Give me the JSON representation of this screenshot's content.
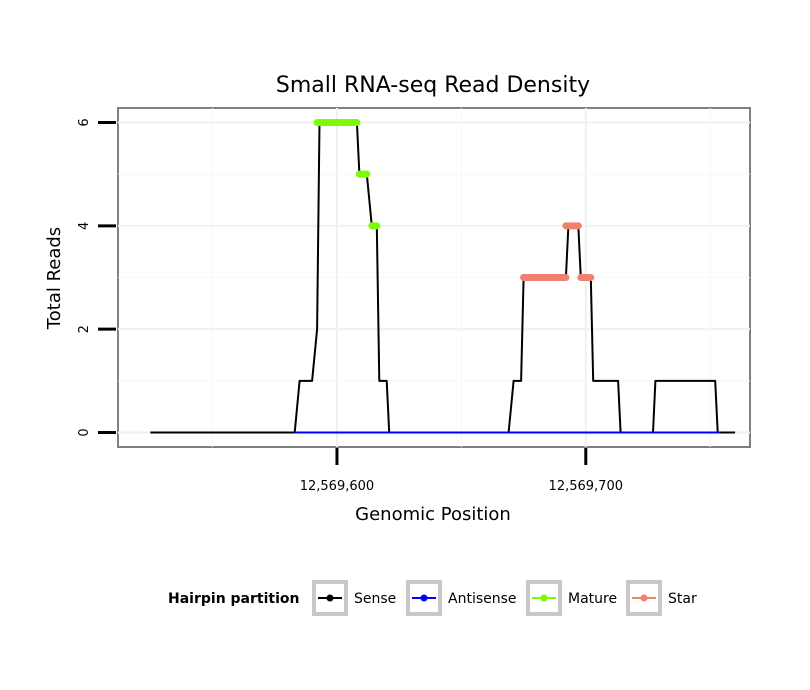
{
  "chart_data": {
    "type": "line",
    "title": "Small RNA-seq Read Density",
    "xlabel": "Genomic Position",
    "ylabel": "Total Reads",
    "xlim": [
      12569512,
      12569766
    ],
    "ylim": [
      -0.28,
      6.28
    ],
    "x_ticks": [
      {
        "value": 12569600,
        "label": "12,569,600"
      },
      {
        "value": 12569700,
        "label": "12,569,700"
      }
    ],
    "y_ticks": [
      {
        "value": 0,
        "label": "0"
      },
      {
        "value": 2,
        "label": "2"
      },
      {
        "value": 4,
        "label": "4"
      },
      {
        "value": 6,
        "label": "6"
      }
    ],
    "grid": true,
    "legend": {
      "title": "Hairpin partition",
      "position": "bottom",
      "entries": [
        {
          "name": "Sense",
          "color": "#000000"
        },
        {
          "name": "Antisense",
          "color": "#0000ff"
        },
        {
          "name": "Mature",
          "color": "#7cfc00"
        },
        {
          "name": "Star",
          "color": "#f08070"
        }
      ]
    },
    "series": [
      {
        "name": "Sense",
        "color": "#000000",
        "points": [
          [
            12569525,
            0
          ],
          [
            12569583,
            0
          ],
          [
            12569585,
            1
          ],
          [
            12569590,
            1
          ],
          [
            12569592,
            2
          ],
          [
            12569593,
            6
          ],
          [
            12569608,
            6
          ],
          [
            12569609,
            5
          ],
          [
            12569612,
            5
          ],
          [
            12569614,
            4
          ],
          [
            12569616,
            4
          ],
          [
            12569617,
            1
          ],
          [
            12569620,
            1
          ],
          [
            12569621,
            0
          ],
          [
            12569669,
            0
          ],
          [
            12569671,
            1
          ],
          [
            12569674,
            1
          ],
          [
            12569675,
            3
          ],
          [
            12569692,
            3
          ],
          [
            12569693,
            4
          ],
          [
            12569697,
            4
          ],
          [
            12569698,
            3
          ],
          [
            12569702,
            3
          ],
          [
            12569703,
            1
          ],
          [
            12569713,
            1
          ],
          [
            12569714,
            0
          ],
          [
            12569727,
            0
          ],
          [
            12569728,
            1
          ],
          [
            12569752,
            1
          ],
          [
            12569753,
            0
          ],
          [
            12569760,
            0
          ]
        ]
      },
      {
        "name": "Antisense",
        "color": "#0000ff",
        "points": [
          [
            12569583,
            0
          ],
          [
            12569621,
            0
          ],
          [
            12569669,
            0
          ],
          [
            12569754,
            0
          ]
        ]
      },
      {
        "name": "Mature",
        "color": "#7cfc00",
        "segments": [
          {
            "x": [
              12569592,
              12569608
            ],
            "y": 6
          },
          {
            "x": [
              12569609,
              12569612
            ],
            "y": 5
          },
          {
            "x": [
              12569614,
              12569616
            ],
            "y": 4
          }
        ]
      },
      {
        "name": "Star",
        "color": "#f08070",
        "segments": [
          {
            "x": [
              12569675,
              12569692
            ],
            "y": 3
          },
          {
            "x": [
              12569692,
              12569697
            ],
            "y": 4
          },
          {
            "x": [
              12569698,
              12569702
            ],
            "y": 3
          }
        ]
      }
    ]
  }
}
